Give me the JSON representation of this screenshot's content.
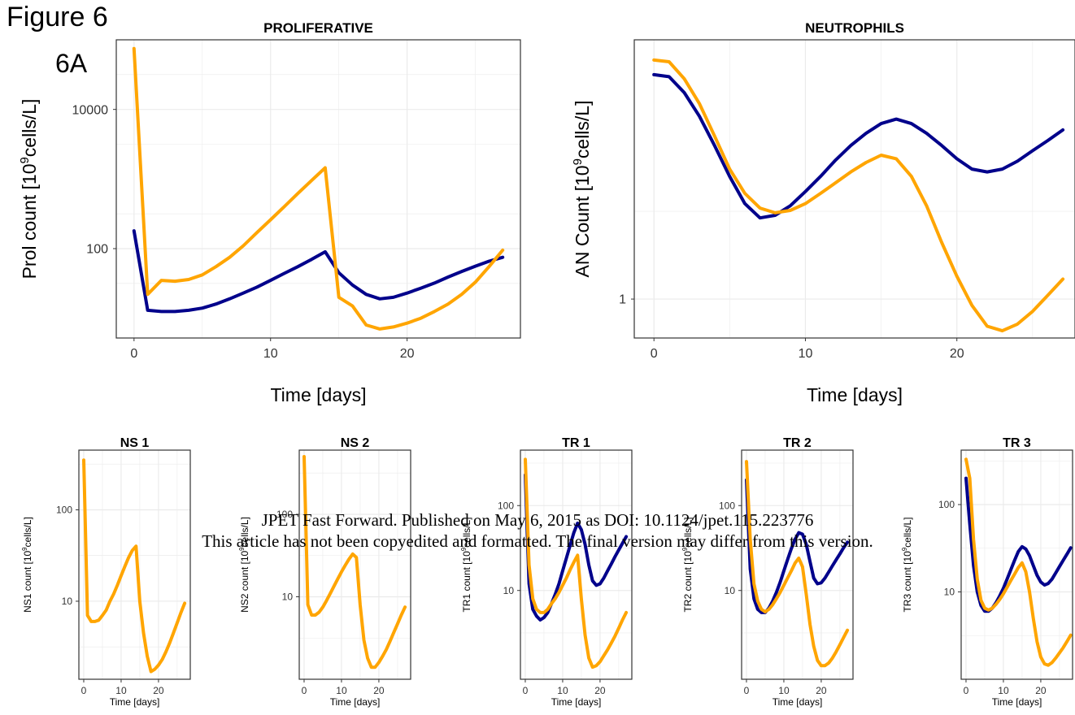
{
  "figure_title": "Figure 6",
  "panel_label": "6A",
  "watermark": {
    "line1": "JPET Fast Forward. Published on May 6, 2015 as DOI: 10.1124/jpet.115.223776",
    "line2": "This article has not been copyedited and formatted. The final version may differ from this version."
  },
  "colors": {
    "series_a": "#00008B",
    "series_b": "#FFA500",
    "grid": "#ebebeb",
    "frame": "#333333"
  },
  "chart_data": [
    {
      "type": "line",
      "title": "PROLIFERATIVE",
      "xlabel": "Time [days]",
      "ylabel": "Prol count [10^9cells/L]",
      "y_scale": "log",
      "xlim": [
        -1.3,
        28.3
      ],
      "ylim": [
        5.2,
        100000
      ],
      "x_ticks": [
        0,
        10,
        20
      ],
      "y_ticks": [
        100,
        10000
      ],
      "y_tick_labels": [
        "100",
        "10000"
      ],
      "grid": true,
      "series": [
        {
          "color": "#00008B",
          "x": [
            0,
            1,
            2,
            3,
            4,
            5,
            6,
            7,
            8,
            9,
            10,
            11,
            12,
            13,
            14,
            15,
            16,
            17,
            18,
            19,
            20,
            21,
            22,
            23,
            24,
            25,
            26,
            27
          ],
          "y": [
            180,
            13,
            12.5,
            12.5,
            13,
            14,
            16,
            19,
            23,
            28,
            35,
            44,
            55,
            70,
            90,
            45,
            30,
            22,
            19,
            20,
            23,
            27,
            32,
            39,
            47,
            56,
            66,
            75
          ]
        },
        {
          "color": "#FFA500",
          "x": [
            0,
            1,
            2,
            3,
            4,
            5,
            6,
            7,
            8,
            9,
            10,
            11,
            12,
            13,
            14,
            15,
            16,
            17,
            18,
            19,
            20,
            21,
            22,
            23,
            24,
            25,
            26,
            27
          ],
          "y": [
            75000,
            22,
            35,
            34,
            36,
            42,
            55,
            75,
            110,
            170,
            260,
            400,
            620,
            950,
            1450,
            20,
            15,
            8,
            7,
            7.5,
            8.5,
            10,
            12.5,
            16,
            22,
            33,
            55,
            95
          ]
        }
      ]
    },
    {
      "type": "line",
      "title": "NEUTROPHILS",
      "xlabel": "Time [days]",
      "ylabel": "AN Count [10^9cells/L]",
      "y_scale": "log",
      "xlim": [
        -1.3,
        27.8
      ],
      "ylim": [
        0.6,
        30
      ],
      "x_ticks": [
        0,
        10,
        20
      ],
      "y_ticks": [
        1
      ],
      "y_tick_labels": [
        "1"
      ],
      "grid": true,
      "series": [
        {
          "color": "#00008B",
          "x": [
            0,
            1,
            2,
            3,
            4,
            5,
            6,
            7,
            8,
            9,
            10,
            11,
            12,
            13,
            14,
            15,
            16,
            17,
            18,
            19,
            20,
            21,
            22,
            23,
            24,
            25,
            26,
            27
          ],
          "y": [
            19,
            18.5,
            15,
            11,
            7.5,
            5,
            3.5,
            2.9,
            3.0,
            3.4,
            4.1,
            5.0,
            6.2,
            7.5,
            8.8,
            10.0,
            10.6,
            10.0,
            8.8,
            7.5,
            6.3,
            5.5,
            5.3,
            5.5,
            6.1,
            7.0,
            8.0,
            9.2
          ]
        },
        {
          "color": "#FFA500",
          "x": [
            0,
            1,
            2,
            3,
            4,
            5,
            6,
            7,
            8,
            9,
            10,
            11,
            12,
            13,
            14,
            15,
            16,
            17,
            18,
            19,
            20,
            21,
            22,
            23,
            24,
            25,
            26,
            27
          ],
          "y": [
            23,
            22.5,
            18,
            13,
            8.5,
            5.5,
            4.0,
            3.3,
            3.1,
            3.2,
            3.5,
            4.0,
            4.6,
            5.3,
            6.0,
            6.6,
            6.3,
            5.0,
            3.4,
            2.1,
            1.35,
            0.92,
            0.7,
            0.66,
            0.72,
            0.85,
            1.05,
            1.3
          ]
        }
      ]
    },
    {
      "type": "line",
      "title": "NS 1",
      "xlabel": "Time [days]",
      "ylabel": "NS1 count [10^9cells/L]",
      "y_scale": "log",
      "xlim": [
        -1.3,
        28.5
      ],
      "ylim": [
        1.4,
        450
      ],
      "x_ticks": [
        0,
        10,
        20
      ],
      "y_ticks": [
        10,
        100
      ],
      "y_tick_labels": [
        "10",
        "100"
      ],
      "grid": true,
      "series": [
        {
          "color": "#FFA500",
          "x": [
            0,
            1,
            2,
            3,
            4,
            5,
            6,
            7,
            8,
            9,
            10,
            11,
            12,
            13,
            14,
            15,
            16,
            17,
            18,
            19,
            20,
            21,
            22,
            23,
            24,
            25,
            26,
            27
          ],
          "y": [
            350,
            7,
            6,
            6,
            6.2,
            7,
            8,
            10,
            12,
            15,
            19,
            24,
            30,
            36,
            40,
            10,
            4.5,
            2.5,
            1.7,
            1.8,
            2.0,
            2.3,
            2.8,
            3.5,
            4.5,
            5.8,
            7.5,
            9.5
          ]
        }
      ]
    },
    {
      "type": "line",
      "title": "NS 2",
      "xlabel": "Time [days]",
      "ylabel": "NS2 count [10^9cells/L]",
      "y_scale": "log",
      "xlim": [
        -1.3,
        28.5
      ],
      "ylim": [
        1.0,
        600
      ],
      "x_ticks": [
        0,
        10,
        20
      ],
      "y_ticks": [
        10,
        100
      ],
      "y_tick_labels": [
        "10",
        "100"
      ],
      "grid": true,
      "series": [
        {
          "color": "#FFA500",
          "x": [
            0,
            1,
            2,
            3,
            4,
            5,
            6,
            7,
            8,
            9,
            10,
            11,
            12,
            13,
            14,
            15,
            16,
            17,
            18,
            19,
            20,
            21,
            22,
            23,
            24,
            25,
            26,
            27
          ],
          "y": [
            500,
            8,
            6,
            6,
            6.5,
            7.5,
            9,
            11,
            13.5,
            16.5,
            20,
            24,
            28.5,
            33,
            30,
            8,
            3,
            1.8,
            1.4,
            1.4,
            1.6,
            1.9,
            2.3,
            2.9,
            3.7,
            4.7,
            6,
            7.5
          ]
        }
      ]
    },
    {
      "type": "line",
      "title": "TR 1",
      "xlabel": "Time [days]",
      "ylabel": "TR1 count [10^9cells/L]",
      "y_scale": "log",
      "xlim": [
        -1.3,
        28.5
      ],
      "ylim": [
        0.9,
        450
      ],
      "x_ticks": [
        0,
        10,
        20
      ],
      "y_ticks": [
        10,
        100
      ],
      "y_tick_labels": [
        "10",
        "100"
      ],
      "grid": true,
      "series": [
        {
          "color": "#00008B",
          "x": [
            0,
            1,
            2,
            3,
            4,
            5,
            6,
            7,
            8,
            9,
            10,
            11,
            12,
            13,
            14,
            15,
            16,
            17,
            18,
            19,
            20,
            21,
            22,
            23,
            24,
            25,
            26,
            27
          ],
          "y": [
            230,
            12,
            6,
            5,
            4.5,
            4.8,
            5.5,
            7,
            9,
            12,
            17,
            24,
            34,
            48,
            62,
            52,
            35,
            20,
            13,
            11.5,
            12,
            14,
            17,
            20.5,
            25,
            30,
            36,
            43
          ]
        },
        {
          "color": "#FFA500",
          "x": [
            0,
            1,
            2,
            3,
            4,
            5,
            6,
            7,
            8,
            9,
            10,
            11,
            12,
            13,
            14,
            15,
            16,
            17,
            18,
            19,
            20,
            21,
            22,
            23,
            24,
            25,
            26,
            27
          ],
          "y": [
            350,
            20,
            8,
            6,
            5.5,
            5.5,
            6,
            7,
            8,
            9.5,
            11.5,
            14,
            17.5,
            21.5,
            26,
            8,
            3,
            1.6,
            1.25,
            1.3,
            1.45,
            1.7,
            2.0,
            2.4,
            2.9,
            3.6,
            4.5,
            5.5
          ]
        }
      ]
    },
    {
      "type": "line",
      "title": "TR 2",
      "xlabel": "Time [days]",
      "ylabel": "TR2 count [10^9cells/L]",
      "y_scale": "log",
      "xlim": [
        -1.3,
        28.5
      ],
      "ylim": [
        0.9,
        450
      ],
      "x_ticks": [
        0,
        10,
        20
      ],
      "y_ticks": [
        10,
        100
      ],
      "y_tick_labels": [
        "10",
        "100"
      ],
      "grid": true,
      "series": [
        {
          "color": "#00008B",
          "x": [
            0,
            1,
            2,
            3,
            4,
            5,
            6,
            7,
            8,
            9,
            10,
            11,
            12,
            13,
            14,
            15,
            16,
            17,
            18,
            19,
            20,
            21,
            22,
            23,
            24,
            25,
            26,
            27
          ],
          "y": [
            200,
            18,
            8,
            6,
            5.5,
            5.5,
            6.2,
            7.5,
            9.5,
            12.5,
            17,
            23,
            31,
            40,
            48,
            46,
            35,
            22,
            14,
            12,
            12.3,
            14,
            16.5,
            19.5,
            23,
            27,
            32,
            37
          ]
        },
        {
          "color": "#FFA500",
          "x": [
            0,
            1,
            2,
            3,
            4,
            5,
            6,
            7,
            8,
            9,
            10,
            11,
            12,
            13,
            14,
            15,
            16,
            17,
            18,
            19,
            20,
            21,
            22,
            23,
            24,
            25,
            26,
            27
          ],
          "y": [
            330,
            40,
            12,
            7.5,
            6,
            5.6,
            6,
            6.8,
            8,
            9.5,
            11.5,
            14,
            17,
            21,
            24,
            19,
            9,
            4,
            2.2,
            1.5,
            1.3,
            1.3,
            1.4,
            1.6,
            1.9,
            2.3,
            2.8,
            3.4
          ]
        }
      ]
    },
    {
      "type": "line",
      "title": "TR 3",
      "xlabel": "Time [days]",
      "ylabel": "TR3 count [10^9cells/L]",
      "y_scale": "log",
      "xlim": [
        -1.3,
        28.5
      ],
      "ylim": [
        1.0,
        420
      ],
      "x_ticks": [
        0,
        10,
        20
      ],
      "y_ticks": [
        10,
        100
      ],
      "y_tick_labels": [
        "10",
        "100"
      ],
      "grid": true,
      "series": [
        {
          "color": "#00008B",
          "x": [
            0,
            1,
            2,
            3,
            4,
            5,
            6,
            7,
            8,
            9,
            10,
            11,
            12,
            13,
            14,
            15,
            16,
            17,
            18,
            19,
            20,
            21,
            22,
            23,
            24,
            25,
            26,
            27,
            28
          ],
          "y": [
            200,
            60,
            20,
            10,
            7,
            6,
            6,
            6.5,
            7.5,
            9,
            11,
            14,
            18,
            23,
            29,
            33,
            31,
            26,
            20,
            15.5,
            13,
            12,
            12.5,
            14,
            16.5,
            19.5,
            23,
            27,
            32
          ]
        },
        {
          "color": "#FFA500",
          "x": [
            0,
            1,
            2,
            3,
            4,
            5,
            6,
            7,
            8,
            9,
            10,
            11,
            12,
            13,
            14,
            15,
            16,
            17,
            18,
            19,
            20,
            21,
            22,
            23,
            24,
            25,
            26,
            27,
            28
          ],
          "y": [
            330,
            200,
            40,
            14,
            8,
            6.5,
            6.2,
            6.5,
            7.2,
            8.2,
            9.5,
            11.3,
            13.5,
            16,
            19,
            21.5,
            17,
            10,
            5,
            2.7,
            1.8,
            1.5,
            1.45,
            1.55,
            1.75,
            2.0,
            2.3,
            2.7,
            3.2
          ]
        }
      ]
    }
  ]
}
